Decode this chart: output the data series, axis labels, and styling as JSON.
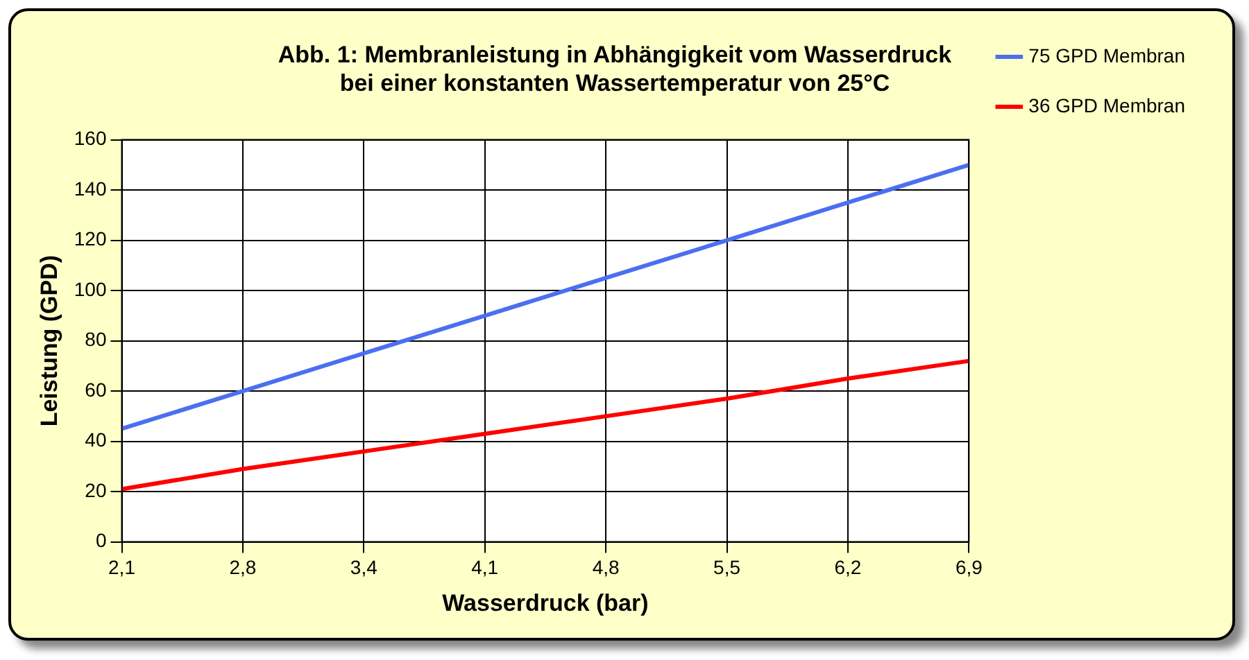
{
  "chart_data": {
    "type": "line",
    "title": "Abb. 1: Membranleistung in Abhängigkeit vom Wasserdruck\nbei einer konstanten Wassertemperatur von 25°C",
    "xlabel": "Wasserdruck (bar)",
    "ylabel": "Leistung (GPD)",
    "categories": [
      "2,1",
      "2,8",
      "3,4",
      "4,1",
      "4,8",
      "5,5",
      "6,2",
      "6,9"
    ],
    "series": [
      {
        "name": "75 GPD Membran",
        "color": "#4c6ff0",
        "values": [
          45,
          60,
          75,
          90,
          105,
          120,
          135,
          150
        ]
      },
      {
        "name": "36 GPD Membran",
        "color": "#ff0000",
        "values": [
          21,
          29,
          36,
          43,
          50,
          57,
          65,
          72
        ]
      }
    ],
    "ylim": [
      0,
      160
    ],
    "yticks": [
      0,
      20,
      40,
      60,
      80,
      100,
      120,
      140,
      160
    ],
    "grid": true,
    "legend": "right",
    "marker": "none",
    "line_style": "solid"
  }
}
